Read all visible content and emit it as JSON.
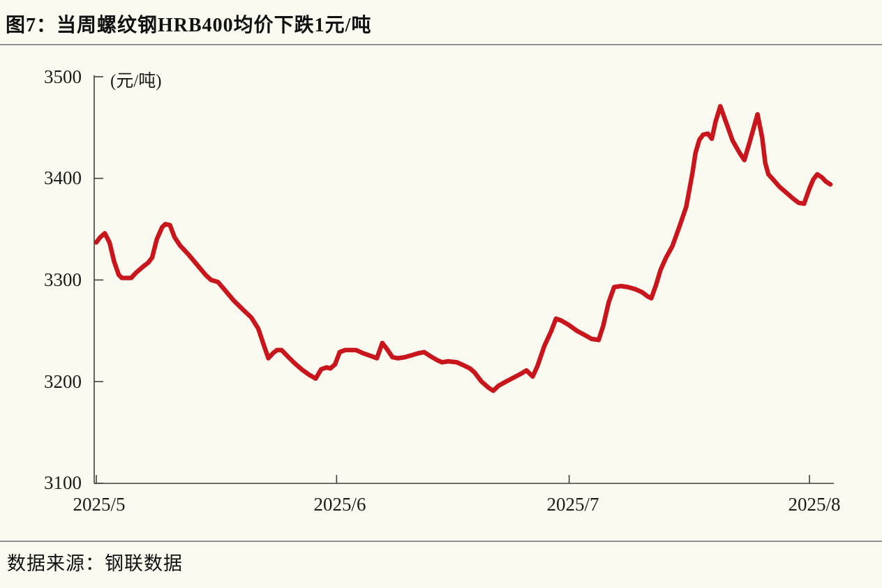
{
  "title": "图7：当周螺纹钢HRB400均价下跌1元/吨",
  "source": "数据来源：钢联数据",
  "colors": {
    "background": "#FBFAF1",
    "line": "#C9151C",
    "axis": "#3f3f3f",
    "separator": "#8f8f8f"
  },
  "chart_data": {
    "type": "line",
    "title": "图7：当周螺纹钢HRB400均价下跌1元/吨",
    "unit_label": "(元/吨)",
    "legend": "none",
    "grid": "off",
    "y_axis": {
      "min": 3100,
      "max": 3500,
      "tick_values": [
        3100,
        3200,
        3300,
        3400,
        3500
      ],
      "tick_labels": [
        "3100",
        "3200",
        "3300",
        "3400",
        "3500"
      ]
    },
    "x_axis": {
      "tick_labels": [
        "2025/5",
        "2025/6",
        "2025/7",
        "2025/8"
      ],
      "tick_day_offsets": [
        0,
        31,
        61,
        92
      ]
    },
    "series": [
      {
        "color": "#C9151C",
        "points": [
          [
            0,
            3337
          ],
          [
            0.5,
            3342
          ],
          [
            1.1,
            3346
          ],
          [
            1.7,
            3337
          ],
          [
            2.3,
            3318
          ],
          [
            2.9,
            3305
          ],
          [
            3.3,
            3302
          ],
          [
            4.5,
            3302
          ],
          [
            5.1,
            3307
          ],
          [
            6,
            3313
          ],
          [
            6.7,
            3317
          ],
          [
            7.2,
            3322
          ],
          [
            7.8,
            3340
          ],
          [
            8.5,
            3352
          ],
          [
            8.9,
            3355
          ],
          [
            9.5,
            3354
          ],
          [
            10.1,
            3342
          ],
          [
            10.8,
            3334
          ],
          [
            11.9,
            3325
          ],
          [
            13,
            3315
          ],
          [
            14.1,
            3305
          ],
          [
            14.8,
            3300
          ],
          [
            15.7,
            3298
          ],
          [
            16.6,
            3290
          ],
          [
            17.7,
            3280
          ],
          [
            18.9,
            3271
          ],
          [
            20,
            3263
          ],
          [
            20.9,
            3252
          ],
          [
            21.6,
            3236
          ],
          [
            22.2,
            3223
          ],
          [
            22.8,
            3228
          ],
          [
            23.3,
            3231
          ],
          [
            23.9,
            3231
          ],
          [
            24.8,
            3224
          ],
          [
            25.6,
            3218
          ],
          [
            26.5,
            3212
          ],
          [
            27.4,
            3207
          ],
          [
            28.3,
            3203
          ],
          [
            29,
            3212
          ],
          [
            29.7,
            3214
          ],
          [
            30.2,
            3213
          ],
          [
            30.8,
            3217
          ],
          [
            31.4,
            3229
          ],
          [
            32.1,
            3231
          ],
          [
            33.5,
            3231
          ],
          [
            34.4,
            3228
          ],
          [
            35.5,
            3225
          ],
          [
            36.2,
            3223
          ],
          [
            36.9,
            3238
          ],
          [
            37.5,
            3232
          ],
          [
            38.2,
            3224
          ],
          [
            38.9,
            3223
          ],
          [
            39.8,
            3224
          ],
          [
            40.7,
            3226
          ],
          [
            41.6,
            3228
          ],
          [
            42.3,
            3229
          ],
          [
            43.1,
            3225
          ],
          [
            44,
            3221
          ],
          [
            44.6,
            3219
          ],
          [
            45.4,
            3220
          ],
          [
            46.5,
            3219
          ],
          [
            47.4,
            3216
          ],
          [
            48.2,
            3213
          ],
          [
            48.8,
            3209
          ],
          [
            49.7,
            3200
          ],
          [
            50.6,
            3194
          ],
          [
            51.2,
            3191
          ],
          [
            51.9,
            3196
          ],
          [
            52.6,
            3199
          ],
          [
            53.6,
            3203
          ],
          [
            54.6,
            3207
          ],
          [
            55.5,
            3211
          ],
          [
            56.3,
            3205
          ],
          [
            56.9,
            3215
          ],
          [
            57.8,
            3235
          ],
          [
            58.7,
            3250
          ],
          [
            59.3,
            3262
          ],
          [
            60,
            3260
          ],
          [
            60.9,
            3256
          ],
          [
            62,
            3250
          ],
          [
            63.2,
            3245
          ],
          [
            63.9,
            3242
          ],
          [
            64.8,
            3241
          ],
          [
            65.4,
            3255
          ],
          [
            66.1,
            3278
          ],
          [
            66.8,
            3293
          ],
          [
            67.7,
            3294
          ],
          [
            68.6,
            3293
          ],
          [
            69.5,
            3291
          ],
          [
            70.4,
            3288
          ],
          [
            71.1,
            3284
          ],
          [
            71.6,
            3282
          ],
          [
            72.2,
            3295
          ],
          [
            72.8,
            3310
          ],
          [
            73.5,
            3322
          ],
          [
            74.3,
            3333
          ],
          [
            75.2,
            3352
          ],
          [
            76.1,
            3372
          ],
          [
            76.9,
            3405
          ],
          [
            77.3,
            3425
          ],
          [
            77.8,
            3438
          ],
          [
            78.3,
            3443
          ],
          [
            78.9,
            3444
          ],
          [
            79.4,
            3439
          ],
          [
            79.9,
            3456
          ],
          [
            80.5,
            3471
          ],
          [
            81.2,
            3456
          ],
          [
            82.1,
            3437
          ],
          [
            83,
            3425
          ],
          [
            83.6,
            3418
          ],
          [
            84.3,
            3436
          ],
          [
            85,
            3455
          ],
          [
            85.3,
            3463
          ],
          [
            85.9,
            3440
          ],
          [
            86.3,
            3415
          ],
          [
            86.7,
            3404
          ],
          [
            87.3,
            3399
          ],
          [
            88.1,
            3392
          ],
          [
            89,
            3386
          ],
          [
            89.9,
            3380
          ],
          [
            90.6,
            3376
          ],
          [
            91.3,
            3375
          ],
          [
            92,
            3390
          ],
          [
            92.5,
            3399
          ],
          [
            93,
            3404
          ],
          [
            93.6,
            3401
          ],
          [
            94.1,
            3397
          ],
          [
            94.7,
            3394
          ]
        ]
      }
    ]
  }
}
